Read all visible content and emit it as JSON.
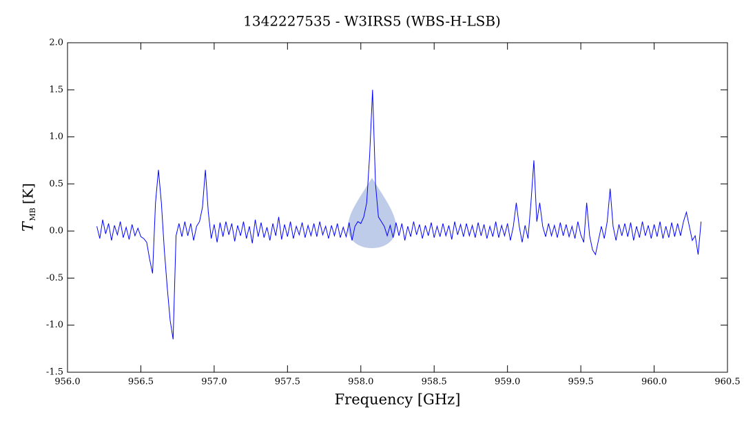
{
  "chart_data": {
    "type": "line",
    "title": "1342227535 - W3IRS5 (WBS-H-LSB)",
    "xlabel": "Frequency [GHz]",
    "ylabel": [
      "T",
      "MB",
      "[K]"
    ],
    "xlim": [
      956.0,
      960.5
    ],
    "ylim": [
      -1.5,
      2.0
    ],
    "xticks": [
      {
        "value": 956.0,
        "label": "956.0"
      },
      956.5,
      {
        "value": 957.0,
        "label": "957.0"
      },
      957.5,
      {
        "value": 958.0,
        "label": "958.0"
      },
      958.5,
      {
        "value": 959.0,
        "label": "959.0"
      },
      959.5,
      {
        "value": 960.0,
        "label": "960.0"
      },
      960.5
    ],
    "yticks": [
      -1.5,
      {
        "value": -1.0,
        "label": "-1.0"
      },
      -0.5,
      {
        "value": 0.0,
        "label": "0.0"
      },
      0.5,
      {
        "value": 1.0,
        "label": "1.0"
      },
      1.5,
      {
        "value": 2.0,
        "label": "2.0"
      }
    ],
    "grid": false,
    "series": [
      {
        "color": "#0000ff",
        "x": [
          956.2,
          956.22,
          956.24,
          956.26,
          956.28,
          956.3,
          956.32,
          956.34,
          956.36,
          956.38,
          956.4,
          956.42,
          956.44,
          956.46,
          956.48,
          956.5,
          956.52,
          956.54,
          956.56,
          956.58,
          956.6,
          956.62,
          956.64,
          956.66,
          956.68,
          956.7,
          956.72,
          956.74,
          956.76,
          956.78,
          956.8,
          956.82,
          956.84,
          956.86,
          956.88,
          956.9,
          956.92,
          956.94,
          956.96,
          956.98,
          957.0,
          957.02,
          957.04,
          957.06,
          957.08,
          957.1,
          957.12,
          957.14,
          957.16,
          957.18,
          957.2,
          957.22,
          957.24,
          957.26,
          957.28,
          957.3,
          957.32,
          957.34,
          957.36,
          957.38,
          957.4,
          957.42,
          957.44,
          957.46,
          957.48,
          957.5,
          957.52,
          957.54,
          957.56,
          957.58,
          957.6,
          957.62,
          957.64,
          957.66,
          957.68,
          957.7,
          957.72,
          957.74,
          957.76,
          957.78,
          957.8,
          957.82,
          957.84,
          957.86,
          957.88,
          957.9,
          957.92,
          957.94,
          957.96,
          957.98,
          958.0,
          958.02,
          958.04,
          958.06,
          958.08,
          958.1,
          958.12,
          958.14,
          958.16,
          958.18,
          958.2,
          958.22,
          958.24,
          958.26,
          958.28,
          958.3,
          958.32,
          958.34,
          958.36,
          958.38,
          958.4,
          958.42,
          958.44,
          958.46,
          958.48,
          958.5,
          958.52,
          958.54,
          958.56,
          958.58,
          958.6,
          958.62,
          958.64,
          958.66,
          958.68,
          958.7,
          958.72,
          958.74,
          958.76,
          958.78,
          958.8,
          958.82,
          958.84,
          958.86,
          958.88,
          958.9,
          958.92,
          958.94,
          958.96,
          958.98,
          959.0,
          959.02,
          959.04,
          959.06,
          959.08,
          959.1,
          959.12,
          959.14,
          959.16,
          959.18,
          959.2,
          959.22,
          959.24,
          959.26,
          959.28,
          959.3,
          959.32,
          959.34,
          959.36,
          959.38,
          959.4,
          959.42,
          959.44,
          959.46,
          959.48,
          959.5,
          959.52,
          959.54,
          959.56,
          959.58,
          959.6,
          959.62,
          959.64,
          959.66,
          959.68,
          959.7,
          959.72,
          959.74,
          959.76,
          959.78,
          959.8,
          959.82,
          959.84,
          959.86,
          959.88,
          959.9,
          959.92,
          959.94,
          959.96,
          959.98,
          960.0,
          960.02,
          960.04,
          960.06,
          960.08,
          960.1,
          960.12,
          960.14,
          960.16,
          960.18,
          960.2,
          960.22,
          960.24,
          960.26,
          960.28,
          960.3,
          960.32
        ],
        "values": [
          0.05,
          -0.08,
          0.12,
          -0.03,
          0.08,
          -0.1,
          0.06,
          -0.04,
          0.1,
          -0.07,
          0.04,
          -0.09,
          0.07,
          -0.05,
          0.03,
          -0.06,
          -0.08,
          -0.12,
          -0.3,
          -0.45,
          0.3,
          0.65,
          0.3,
          -0.2,
          -0.6,
          -0.95,
          -1.15,
          -0.05,
          0.08,
          -0.06,
          0.1,
          -0.05,
          0.08,
          -0.1,
          0.05,
          0.1,
          0.25,
          0.65,
          0.2,
          -0.08,
          0.07,
          -0.12,
          0.09,
          -0.06,
          0.1,
          -0.04,
          0.08,
          -0.11,
          0.06,
          -0.05,
          0.1,
          -0.08,
          0.05,
          -0.13,
          0.12,
          -0.06,
          0.09,
          -0.07,
          0.04,
          -0.1,
          0.08,
          -0.05,
          0.15,
          -0.09,
          0.07,
          -0.06,
          0.1,
          -0.08,
          0.05,
          -0.04,
          0.09,
          -0.07,
          0.06,
          -0.05,
          0.08,
          -0.06,
          0.1,
          -0.04,
          0.05,
          -0.08,
          0.06,
          -0.05,
          0.08,
          -0.07,
          0.04,
          -0.06,
          0.09,
          -0.1,
          0.05,
          0.1,
          0.08,
          0.15,
          0.3,
          0.8,
          1.5,
          0.5,
          0.15,
          0.1,
          0.05,
          -0.05,
          0.06,
          -0.07,
          0.09,
          -0.05,
          0.08,
          -0.1,
          0.05,
          -0.06,
          0.1,
          -0.04,
          0.07,
          -0.08,
          0.06,
          -0.05,
          0.09,
          -0.07,
          0.05,
          -0.06,
          0.08,
          -0.05,
          0.06,
          -0.09,
          0.1,
          -0.04,
          0.07,
          -0.06,
          0.08,
          -0.05,
          0.06,
          -0.07,
          0.09,
          -0.05,
          0.07,
          -0.08,
          0.05,
          -0.06,
          0.1,
          -0.07,
          0.06,
          -0.05,
          0.08,
          -0.1,
          0.05,
          0.3,
          0.05,
          -0.12,
          0.06,
          -0.08,
          0.3,
          0.75,
          0.1,
          0.3,
          0.05,
          -0.06,
          0.08,
          -0.05,
          0.06,
          -0.07,
          0.09,
          -0.05,
          0.07,
          -0.06,
          0.05,
          -0.08,
          0.1,
          -0.04,
          -0.12,
          0.3,
          -0.05,
          -0.2,
          -0.25,
          -0.1,
          0.05,
          -0.08,
          0.1,
          0.45,
          0.05,
          -0.1,
          0.07,
          -0.05,
          0.08,
          -0.06,
          0.09,
          -0.1,
          0.05,
          -0.07,
          0.1,
          -0.05,
          0.06,
          -0.08,
          0.07,
          -0.06,
          0.1,
          -0.08,
          0.05,
          -0.07,
          0.09,
          -0.06,
          0.08,
          -0.05,
          0.1,
          0.2,
          0.05,
          -0.1,
          -0.05,
          -0.25,
          0.1
        ]
      }
    ]
  }
}
